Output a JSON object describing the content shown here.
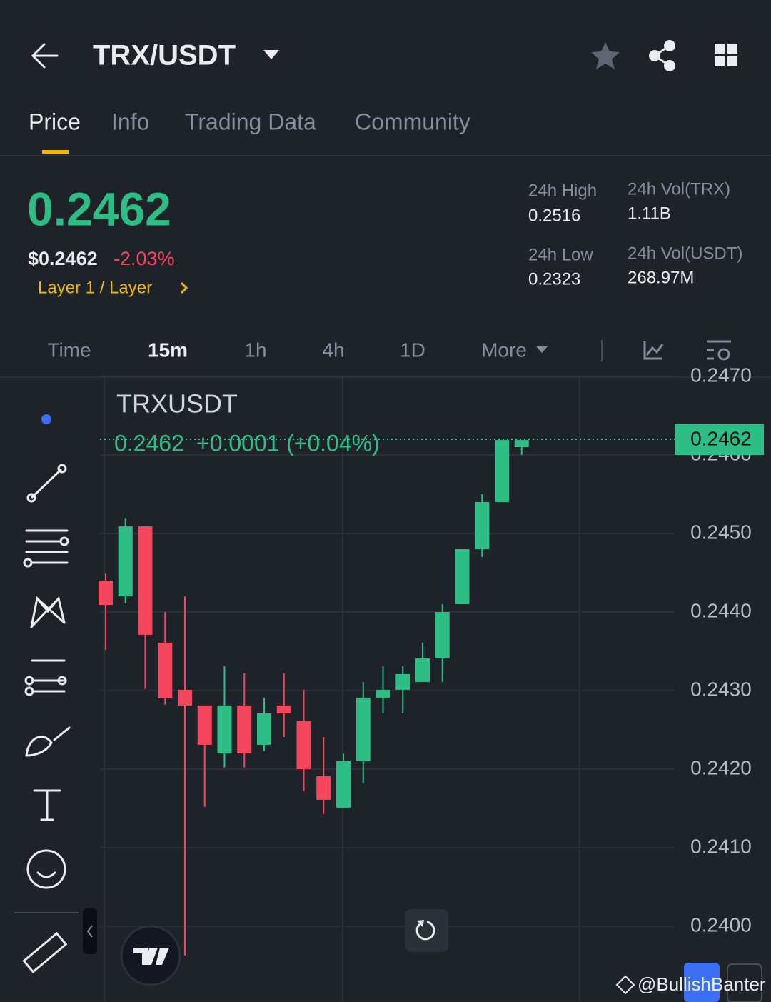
{
  "header": {
    "title": "TRX/USDT"
  },
  "tabs": [
    "Price",
    "Info",
    "Trading Data",
    "Community"
  ],
  "price": {
    "last": "0.2462",
    "usd": "$0.2462",
    "change": "-2.03%",
    "tag": "Layer 1 / Layer"
  },
  "stats": [
    {
      "label": "24h High",
      "value": "0.2516"
    },
    {
      "label": "24h Low",
      "value": "0.2323"
    },
    {
      "label": "24h Vol(TRX)",
      "value": "1.11B"
    },
    {
      "label": "24h Vol(USDT)",
      "value": "268.97M"
    }
  ],
  "timeframes": [
    "Time",
    "15m",
    "1h",
    "4h",
    "1D",
    "More"
  ],
  "chart_data": {
    "type": "candlestick",
    "title": "TRXUSDT",
    "legend": {
      "price": "0.2462",
      "change": "+0.0001",
      "change_pct": "(+0.04%)"
    },
    "open": [
      0.2444,
      0.2442,
      0.24509,
      0.24361,
      0.24301,
      0.24281,
      0.2422,
      0.24281,
      0.24231,
      0.24281,
      0.24261,
      0.24191,
      0.24151,
      0.2421,
      0.24291,
      0.24301,
      0.24311,
      0.24341,
      0.2441,
      0.2448,
      0.2454,
      0.2461
    ],
    "high": [
      0.24449,
      0.24519,
      0.24509,
      0.244,
      0.2442,
      0.24281,
      0.24331,
      0.24322,
      0.24291,
      0.24322,
      0.24301,
      0.24241,
      0.2422,
      0.24311,
      0.24331,
      0.24331,
      0.24361,
      0.2441,
      0.2448,
      0.2455,
      0.24619,
      0.24619
    ],
    "low": [
      0.24352,
      0.24411,
      0.24302,
      0.24282,
      0.23963,
      0.24152,
      0.24202,
      0.24202,
      0.24223,
      0.24241,
      0.24172,
      0.24143,
      0.24151,
      0.24182,
      0.24271,
      0.24271,
      0.24311,
      0.24311,
      0.2441,
      0.2447,
      0.2454,
      0.246
    ],
    "close": [
      0.24409,
      0.24509,
      0.24371,
      0.2429,
      0.24281,
      0.24231,
      0.24281,
      0.2422,
      0.24271,
      0.24271,
      0.242,
      0.24161,
      0.2421,
      0.24291,
      0.24301,
      0.24321,
      0.24341,
      0.244,
      0.2448,
      0.2454,
      0.24619,
      0.24619
    ],
    "up_color": "#2ebd85",
    "down_color": "#f6465d",
    "last_price": 0.2462,
    "ylim": [
      0.2390364,
      0.247
    ],
    "yticks": [
      {
        "value": 0.24,
        "label": "0.2400"
      },
      {
        "value": 0.241,
        "label": "0.2410"
      },
      {
        "value": 0.242,
        "label": "0.2420"
      },
      {
        "value": 0.243,
        "label": "0.2430"
      },
      {
        "value": 0.244,
        "label": "0.2440"
      },
      {
        "value": 0.245,
        "label": "0.2450"
      },
      {
        "value": 0.246,
        "label": "0.2460"
      },
      {
        "value": 0.247,
        "label": "0.2470"
      }
    ],
    "grid": true
  },
  "watermark": "@BullishBanter"
}
